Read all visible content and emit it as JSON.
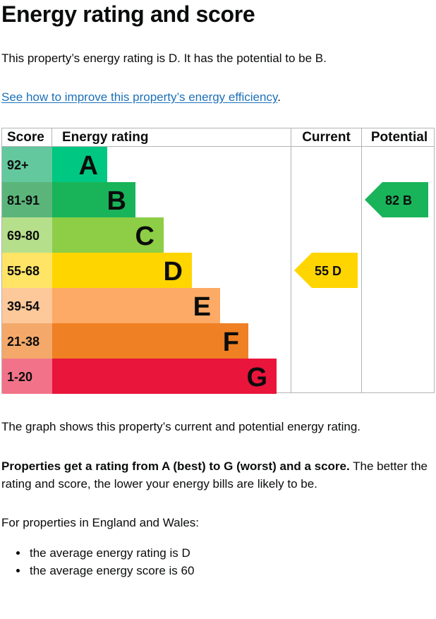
{
  "page": {
    "title": "Energy rating and score",
    "lead": "This property’s energy rating is D. It has the potential to be B.",
    "improve_link": "See how to improve this property’s energy efficiency",
    "improve_link_suffix": ".",
    "graph_note": "The graph shows this property’s current and potential energy rating.",
    "rating_note_bold": "Properties get a rating from A (best) to G (worst) and a score.",
    "rating_note_rest": " The better the rating and score, the lower your energy bills are likely to be.",
    "avg_intro": "For properties in England and Wales:",
    "averages": [
      "the average energy rating is D",
      "the average energy score is 60"
    ]
  },
  "chart_data": {
    "type": "bar",
    "headers": {
      "score": "Score",
      "rating": "Energy rating",
      "current": "Current",
      "potential": "Potential"
    },
    "bands": [
      {
        "score": "92+",
        "letter": "A",
        "color": "#00c781",
        "score_bg": "#64c89e"
      },
      {
        "score": "81-91",
        "letter": "B",
        "color": "#19b459",
        "score_bg": "#5bb57a"
      },
      {
        "score": "69-80",
        "letter": "C",
        "color": "#8dce46",
        "score_bg": "#b6df8c"
      },
      {
        "score": "55-68",
        "letter": "D",
        "color": "#ffd500",
        "score_bg": "#ffe466"
      },
      {
        "score": "39-54",
        "letter": "E",
        "color": "#fcaa65",
        "score_bg": "#fdc89a"
      },
      {
        "score": "21-38",
        "letter": "F",
        "color": "#ef8023",
        "score_bg": "#f4a96a"
      },
      {
        "score": "1-20",
        "letter": "G",
        "color": "#e9153b",
        "score_bg": "#f27389"
      }
    ],
    "current": {
      "score": 55,
      "letter": "D",
      "label": "55 D",
      "color": "#ffd500"
    },
    "potential": {
      "score": 82,
      "letter": "B",
      "label": "82 B",
      "color": "#19b459"
    }
  }
}
